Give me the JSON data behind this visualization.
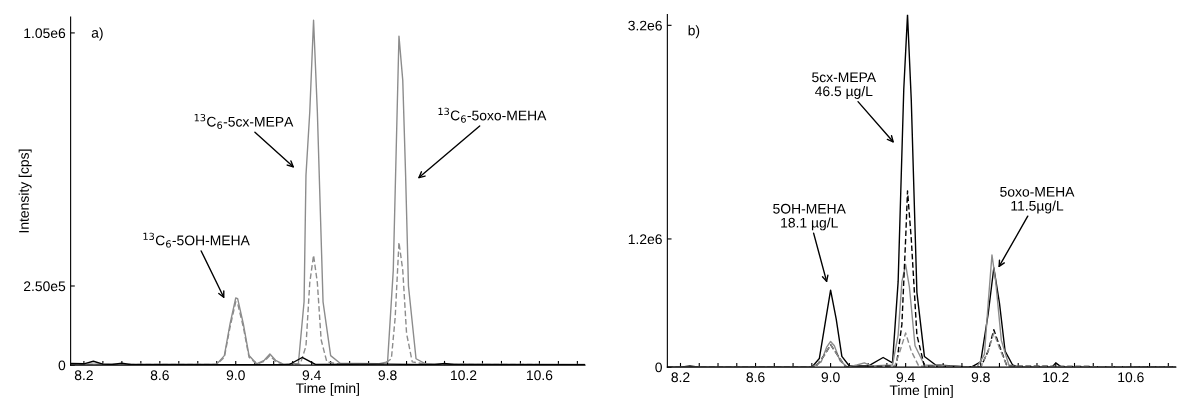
{
  "chart_data": [
    {
      "type": "line",
      "xlabel": "Time [min]",
      "ylabel": "Intensity [cps]",
      "xlim": [
        8.13,
        10.84
      ],
      "ylim": [
        0,
        1100000
      ],
      "xticks": [
        8.2,
        {
          "value": 8.3,
          "label": null
        },
        {
          "value": 8.4,
          "label": null
        },
        {
          "value": 8.5,
          "label": null
        },
        8.6,
        {
          "value": 8.7,
          "label": null
        },
        {
          "value": 8.8,
          "label": null
        },
        {
          "value": 8.9,
          "label": null
        },
        {
          "value": 9.0,
          "label": "9.0"
        },
        {
          "value": 9.1,
          "label": null
        },
        {
          "value": 9.2,
          "label": null
        },
        {
          "value": 9.3,
          "label": null
        },
        9.4,
        {
          "value": 9.5,
          "label": null
        },
        {
          "value": 9.6,
          "label": null
        },
        {
          "value": 9.7,
          "label": null
        },
        9.8,
        {
          "value": 9.9,
          "label": null
        },
        {
          "value": 10.0,
          "label": null
        },
        {
          "value": 10.1,
          "label": null
        },
        10.2,
        {
          "value": 10.3,
          "label": null
        },
        {
          "value": 10.4,
          "label": null
        },
        {
          "value": 10.5,
          "label": null
        },
        10.6,
        {
          "value": 10.7,
          "label": null
        },
        {
          "value": 10.8,
          "label": null
        }
      ],
      "yticks": [
        0,
        {
          "value": 250000,
          "label": "2.50e5"
        },
        {
          "value": 1050000,
          "label": "1.05e6"
        }
      ],
      "grid": false,
      "legend": false,
      "series": [
        {
          "color": "#8c8c8c",
          "line_style": "solid",
          "x": [
            8.13,
            8.9,
            8.94,
            8.97,
            9.0,
            9.01,
            9.04,
            9.07,
            9.11,
            9.15,
            9.18,
            9.21,
            9.25,
            9.33,
            9.36,
            9.37,
            9.39,
            9.41,
            9.43,
            9.46,
            9.5,
            9.55,
            9.75,
            9.8,
            9.83,
            9.86,
            9.88,
            9.895,
            9.91,
            9.95,
            10.0,
            10.84
          ],
          "values": [
            3000,
            3000,
            30000,
            130000,
            212000,
            210000,
            130000,
            30000,
            4000,
            15000,
            35000,
            15000,
            3000,
            5000,
            200000,
            600000,
            800000,
            1090000,
            800000,
            200000,
            30000,
            6000,
            4000,
            10000,
            300000,
            1040000,
            900000,
            600000,
            250000,
            20000,
            4000,
            2000
          ]
        },
        {
          "color": "#8c8c8c",
          "line_style": "dashed",
          "x": [
            8.13,
            8.9,
            8.94,
            8.97,
            9.0,
            9.01,
            9.04,
            9.07,
            9.11,
            9.15,
            9.18,
            9.21,
            9.25,
            9.34,
            9.37,
            9.39,
            9.41,
            9.43,
            9.45,
            9.48,
            9.55,
            9.78,
            9.82,
            9.84,
            9.86,
            9.88,
            9.9,
            9.93,
            10.0,
            10.84
          ],
          "values": [
            2000,
            2000,
            25000,
            120000,
            200000,
            195000,
            120000,
            25000,
            3000,
            12000,
            30000,
            12000,
            2000,
            3000,
            60000,
            260000,
            347000,
            260000,
            80000,
            10000,
            3000,
            3000,
            20000,
            150000,
            388000,
            300000,
            100000,
            10000,
            3000,
            1000
          ]
        },
        {
          "color": "#000000",
          "line_style": "solid",
          "x": [
            8.13,
            8.2,
            8.25,
            8.3,
            8.35,
            8.4,
            8.45,
            9.28,
            9.35,
            9.42,
            9.8,
            10.05,
            10.1,
            10.15,
            10.84
          ],
          "values": [
            5000,
            4000,
            12000,
            3000,
            2000,
            6000,
            1000,
            1000,
            24000,
            2000,
            3000,
            1000,
            5000,
            1000,
            1000
          ]
        }
      ],
      "annotations": [
        "a)",
        "$^{13}$C$_{6}$-5OH-MEHA",
        "$^{13}$C$_{6}$-5cx-MEPA",
        "$^{13}$C$_{6}$-5oxo-MEHA"
      ]
    },
    {
      "type": "line",
      "xlabel": "Time [min]",
      "xlim": [
        8.13,
        10.84
      ],
      "ylim": [
        0,
        3300000
      ],
      "xticks": [
        8.2,
        {
          "value": 8.3,
          "label": null
        },
        {
          "value": 8.4,
          "label": null
        },
        {
          "value": 8.5,
          "label": null
        },
        8.6,
        {
          "value": 8.7,
          "label": null
        },
        {
          "value": 8.8,
          "label": null
        },
        {
          "value": 8.9,
          "label": null
        },
        {
          "value": 9.0,
          "label": "9.0"
        },
        {
          "value": 9.1,
          "label": null
        },
        {
          "value": 9.2,
          "label": null
        },
        {
          "value": 9.3,
          "label": null
        },
        9.4,
        {
          "value": 9.5,
          "label": null
        },
        {
          "value": 9.6,
          "label": null
        },
        {
          "value": 9.7,
          "label": null
        },
        9.8,
        {
          "value": 9.9,
          "label": null
        },
        {
          "value": 10.0,
          "label": null
        },
        {
          "value": 10.1,
          "label": null
        },
        10.2,
        {
          "value": 10.3,
          "label": null
        },
        {
          "value": 10.4,
          "label": null
        },
        {
          "value": 10.5,
          "label": null
        },
        10.6,
        {
          "value": 10.7,
          "label": null
        },
        {
          "value": 10.8,
          "label": null
        }
      ],
      "yticks": [
        0,
        {
          "value": 1200000,
          "label": "1.2e6"
        },
        {
          "value": 3200000,
          "label": "3.2e6"
        }
      ],
      "grid": false,
      "legend": false,
      "series": [
        {
          "color": "#000000",
          "line_style": "solid",
          "x": [
            8.13,
            8.2,
            8.25,
            8.3,
            8.9,
            8.94,
            8.97,
            9.0,
            9.03,
            9.06,
            9.1,
            9.2,
            9.28,
            9.33,
            9.36,
            9.375,
            9.39,
            9.41,
            9.43,
            9.46,
            9.5,
            9.56,
            9.65,
            9.75,
            9.8,
            9.84,
            9.87,
            9.9,
            9.93,
            9.97,
            10.0,
            10.18,
            10.2,
            10.23,
            10.84
          ],
          "values": [
            0,
            0,
            10000,
            0,
            0,
            80000,
            400000,
            720000,
            450000,
            100000,
            10000,
            10000,
            90000,
            40000,
            800000,
            1700000,
            2600000,
            3300000,
            2500000,
            700000,
            100000,
            20000,
            10000,
            0,
            50000,
            500000,
            930000,
            600000,
            150000,
            20000,
            0,
            0,
            40000,
            0,
            0
          ]
        },
        {
          "color": "#8c8c8c",
          "line_style": "solid",
          "x": [
            8.13,
            8.9,
            8.95,
            8.98,
            9.0,
            9.02,
            9.05,
            9.09,
            9.14,
            9.18,
            9.22,
            9.33,
            9.36,
            9.38,
            9.4,
            9.42,
            9.45,
            9.5,
            9.78,
            9.82,
            9.84,
            9.86,
            9.88,
            9.91,
            9.95,
            10.0,
            10.84
          ],
          "values": [
            0,
            0,
            50000,
            190000,
            240000,
            200000,
            60000,
            0,
            20000,
            40000,
            10000,
            20000,
            300000,
            800000,
            960000,
            750000,
            200000,
            20000,
            0,
            120000,
            600000,
            1050000,
            800000,
            250000,
            20000,
            0,
            0
          ]
        },
        {
          "color": "#000000",
          "line_style": "dashed",
          "x": [
            8.13,
            8.92,
            8.97,
            9.0,
            9.03,
            9.08,
            9.35,
            9.38,
            9.4,
            9.41,
            9.43,
            9.46,
            9.5,
            9.8,
            9.84,
            9.87,
            9.9,
            9.94,
            10.84
          ],
          "values": [
            0,
            0,
            120000,
            210000,
            130000,
            0,
            10000,
            400000,
            1200000,
            1650000,
            1200000,
            300000,
            10000,
            0,
            150000,
            350000,
            200000,
            10000,
            0
          ]
        },
        {
          "color": "#8c8c8c",
          "line_style": "dashed",
          "x": [
            8.13,
            8.92,
            8.97,
            9.0,
            9.03,
            9.08,
            9.34,
            9.37,
            9.4,
            9.43,
            9.47,
            9.8,
            9.84,
            9.87,
            9.9,
            9.94,
            10.84
          ],
          "values": [
            0,
            0,
            120000,
            210000,
            130000,
            0,
            0,
            150000,
            320000,
            150000,
            10000,
            0,
            150000,
            320000,
            180000,
            10000,
            0
          ]
        }
      ],
      "annotations": [
        "b)",
        "5OH-MEHA\n18.1 µg/L",
        "5cx-MEPA\n46.5 µg/L",
        "5oxo-MEHA\n11.5µg/L"
      ]
    }
  ]
}
